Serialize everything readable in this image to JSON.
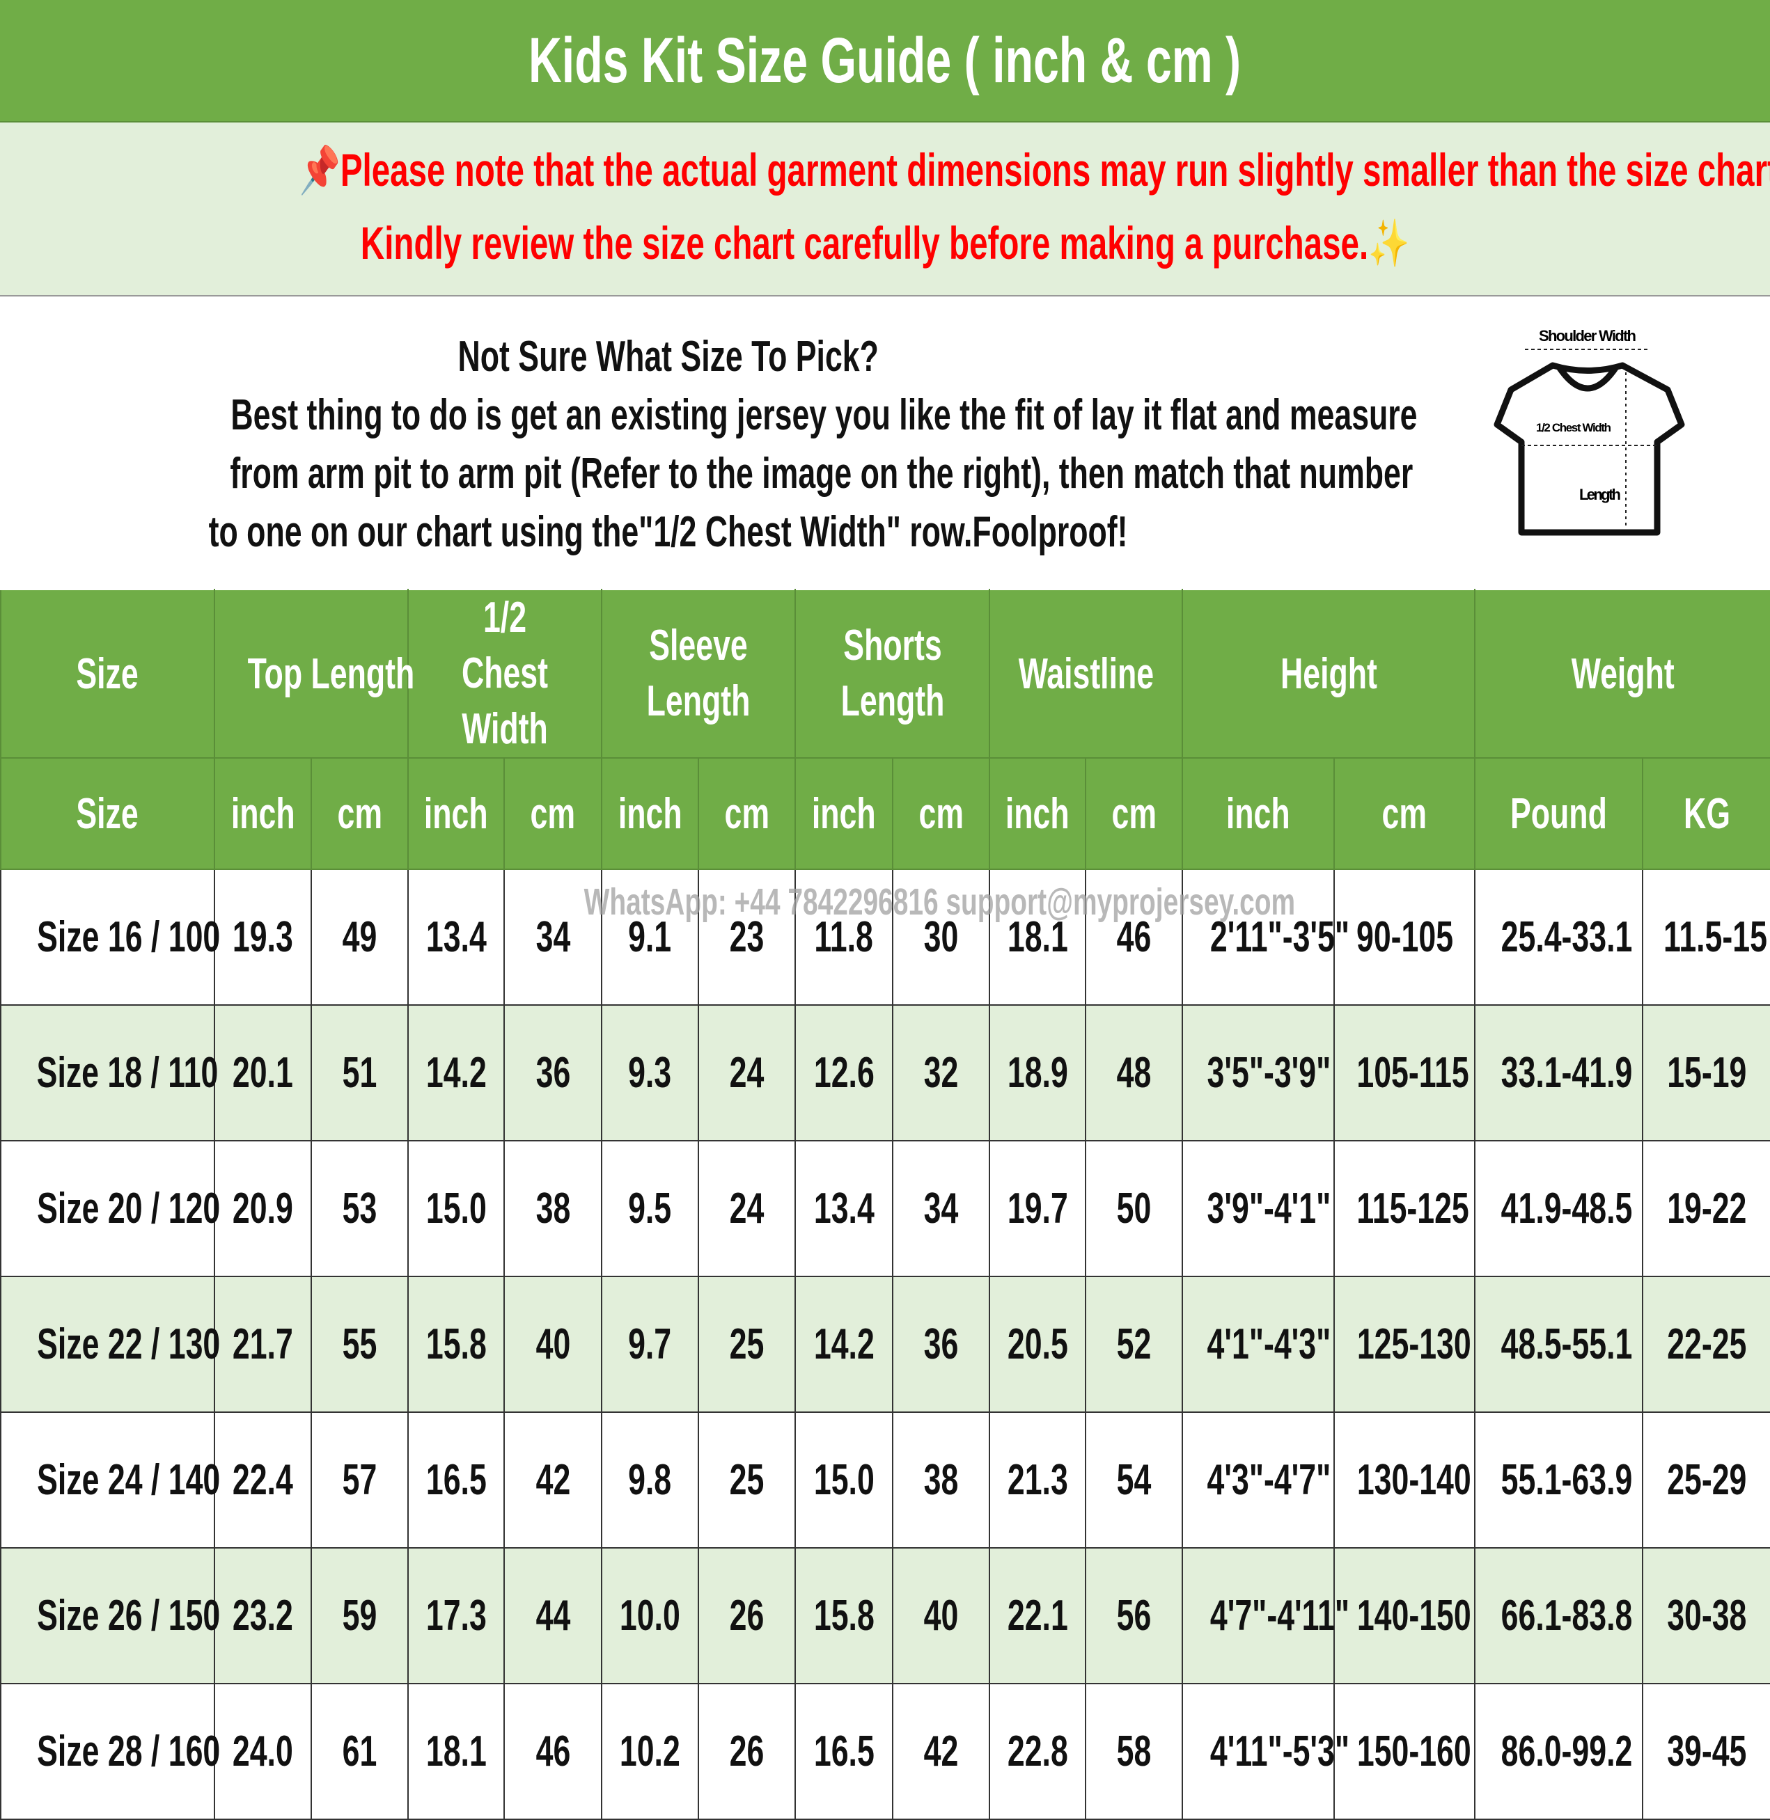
{
  "title": "Kids Kit Size Guide ( inch & cm )",
  "note": {
    "line1": "📌Please note that the actual garment dimensions may run slightly smaller than the size chart 📏.",
    "line2": "Kindly review the size chart carefully before making a purchase.✨"
  },
  "info": {
    "heading": "Not Sure What Size To Pick?",
    "line1": "Best thing to do is get an existing jersey you like the fit of lay it flat and measure",
    "line2": "from arm pit to arm pit (Refer to the image on the right), then match that number",
    "line3": "to one on our chart using the\"1/2 Chest Width\" row.Foolproof!"
  },
  "diagram": {
    "shoulder": "Shoulder Width",
    "chest": "1/2 Chest Width",
    "length": "Length"
  },
  "watermark": "WhatsApp: +44 7842296816  support@myprojersey.com",
  "headers": {
    "size": "Size",
    "top": "Top Length",
    "chest": "1/2 Chest Width",
    "sleeve": "Sleeve Length",
    "shorts": "Shorts Length",
    "waist": "Waistline",
    "height": "Height",
    "weight": "Weight"
  },
  "subheaders": [
    "Size",
    "inch",
    "cm",
    "inch",
    "cm",
    "inch",
    "cm",
    "inch",
    "cm",
    "inch",
    "cm",
    "inch",
    "cm",
    "Pound",
    "KG"
  ],
  "rows": [
    [
      "Size 16 / 100",
      "19.3",
      "49",
      "13.4",
      "34",
      "9.1",
      "23",
      "11.8",
      "30",
      "18.1",
      "46",
      "2'11\"-3'5\"",
      "90-105",
      "25.4-33.1",
      "11.5-15"
    ],
    [
      "Size 18 / 110",
      "20.1",
      "51",
      "14.2",
      "36",
      "9.3",
      "24",
      "12.6",
      "32",
      "18.9",
      "48",
      "3'5\"-3'9\"",
      "105-115",
      "33.1-41.9",
      "15-19"
    ],
    [
      "Size 20 / 120",
      "20.9",
      "53",
      "15.0",
      "38",
      "9.5",
      "24",
      "13.4",
      "34",
      "19.7",
      "50",
      "3'9\"-4'1\"",
      "115-125",
      "41.9-48.5",
      "19-22"
    ],
    [
      "Size 22 / 130",
      "21.7",
      "55",
      "15.8",
      "40",
      "9.7",
      "25",
      "14.2",
      "36",
      "20.5",
      "52",
      "4'1\"-4'3\"",
      "125-130",
      "48.5-55.1",
      "22-25"
    ],
    [
      "Size 24 / 140",
      "22.4",
      "57",
      "16.5",
      "42",
      "9.8",
      "25",
      "15.0",
      "38",
      "21.3",
      "54",
      "4'3\"-4'7\"",
      "130-140",
      "55.1-63.9",
      "25-29"
    ],
    [
      "Size 26 / 150",
      "23.2",
      "59",
      "17.3",
      "44",
      "10.0",
      "26",
      "15.8",
      "40",
      "22.1",
      "56",
      "4'7\"-4'11\"",
      "140-150",
      "66.1-83.8",
      "30-38"
    ],
    [
      "Size 28 / 160",
      "24.0",
      "61",
      "18.1",
      "46",
      "10.2",
      "26",
      "16.5",
      "42",
      "22.8",
      "58",
      "4'11\"-5'3\"",
      "150-160",
      "86.0-99.2",
      "39-45"
    ]
  ],
  "colors": {
    "header_green": "#70ad47",
    "row_alt": "#e2efda",
    "note_red": "#ff0000"
  }
}
